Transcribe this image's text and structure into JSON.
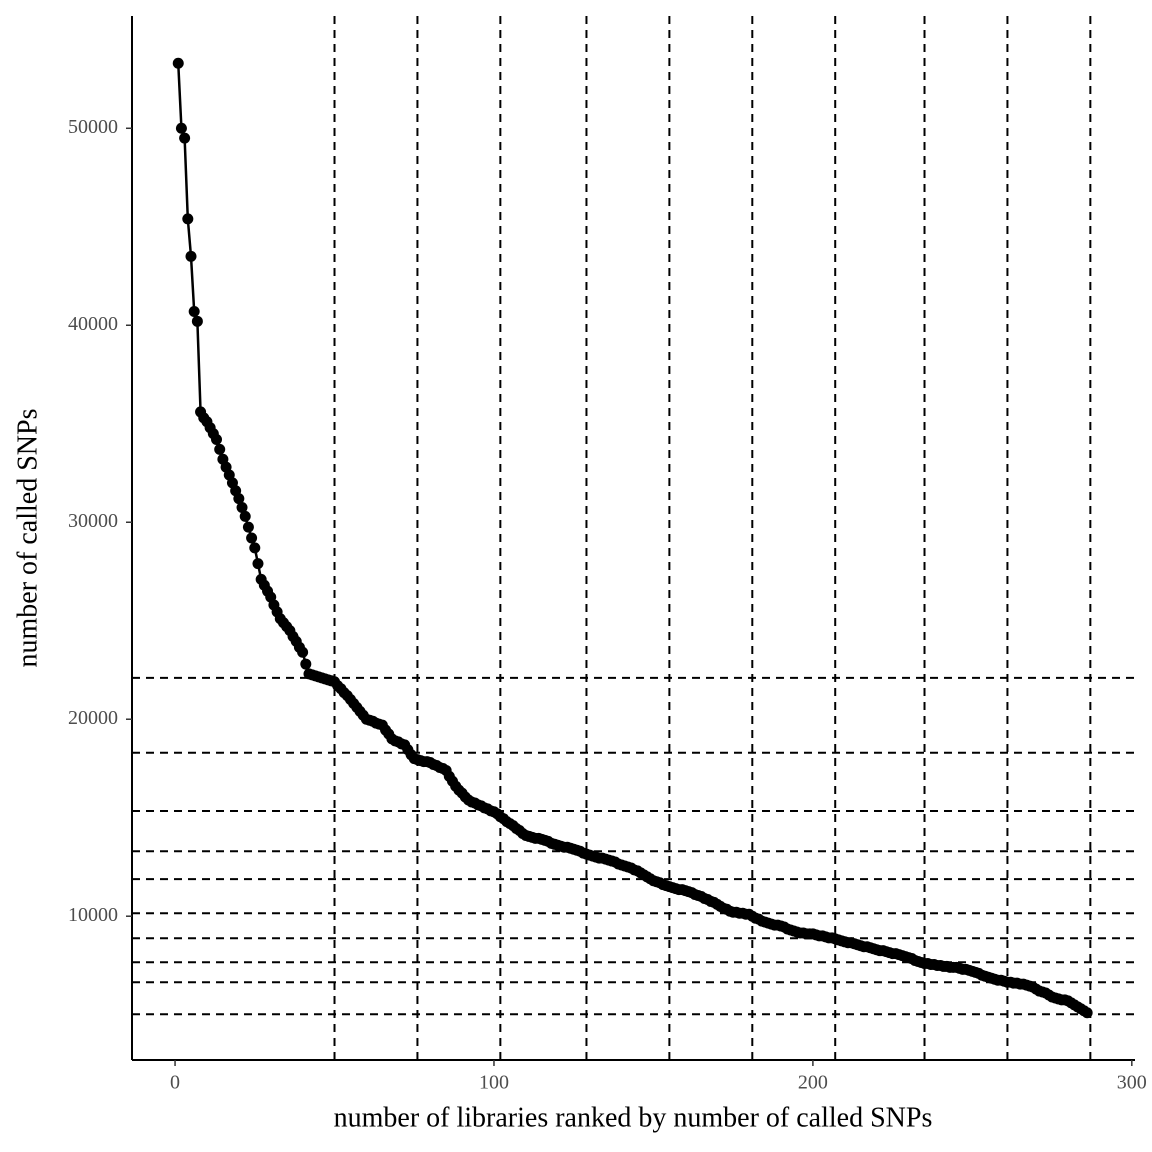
{
  "chart_data": {
    "type": "line",
    "x_label": "number of libraries ranked by number of called SNPs",
    "y_label": "number of called SNPs",
    "color": "#000000",
    "markers": true,
    "xlim": [
      -13.5,
      301
    ],
    "ylim": [
      2700,
      55700
    ],
    "xticks": [
      0,
      100,
      200,
      300
    ],
    "yticks": [
      10000,
      20000,
      30000,
      40000,
      50000
    ],
    "vlines": [
      50,
      76,
      102,
      129,
      155,
      181,
      207,
      235,
      261,
      287
    ],
    "hlines": [
      22100,
      18300,
      15340,
      13300,
      11880,
      10150,
      8880,
      7660,
      6650,
      5020
    ],
    "x": [
      1,
      2,
      3,
      4,
      5,
      6,
      7,
      8,
      9,
      10,
      11,
      12,
      13,
      14,
      15,
      16,
      17,
      18,
      19,
      20,
      21,
      22,
      23,
      24,
      25,
      26,
      27,
      28,
      29,
      30,
      31,
      32,
      33,
      34,
      35,
      36,
      37,
      38,
      39,
      40,
      41,
      42,
      43,
      44,
      45,
      46,
      47,
      48,
      49,
      50,
      51,
      52,
      53,
      54,
      55,
      56,
      57,
      58,
      59,
      60,
      61,
      62,
      63,
      64,
      65,
      66,
      67,
      68,
      69,
      70,
      71,
      72,
      73,
      74,
      75,
      76,
      77,
      78,
      79,
      80,
      81,
      82,
      83,
      84,
      85,
      86,
      87,
      88,
      89,
      90,
      91,
      92,
      93,
      94,
      95,
      96,
      97,
      98,
      99,
      100,
      101,
      102,
      103,
      104,
      105,
      106,
      107,
      108,
      109,
      110,
      111,
      112,
      113,
      114,
      115,
      116,
      117,
      118,
      119,
      120,
      121,
      122,
      123,
      124,
      125,
      126,
      127,
      128,
      129,
      130,
      131,
      132,
      133,
      134,
      135,
      136,
      137,
      138,
      139,
      140,
      141,
      142,
      143,
      144,
      145,
      146,
      147,
      148,
      149,
      150,
      151,
      152,
      153,
      154,
      155,
      156,
      157,
      158,
      159,
      160,
      161,
      162,
      163,
      164,
      165,
      166,
      167,
      168,
      169,
      170,
      171,
      172,
      173,
      174,
      175,
      176,
      177,
      178,
      179,
      180,
      181,
      182,
      183,
      184,
      185,
      186,
      187,
      188,
      189,
      190,
      191,
      192,
      193,
      194,
      195,
      196,
      197,
      198,
      199,
      200,
      201,
      202,
      203,
      204,
      205,
      206,
      207,
      208,
      209,
      210,
      211,
      212,
      213,
      214,
      215,
      216,
      217,
      218,
      219,
      220,
      221,
      222,
      223,
      224,
      225,
      226,
      227,
      228,
      229,
      230,
      231,
      232,
      233,
      234,
      235,
      236,
      237,
      238,
      239,
      240,
      241,
      242,
      243,
      244,
      245,
      246,
      247,
      248,
      249,
      250,
      251,
      252,
      253,
      254,
      255,
      256,
      257,
      258,
      259,
      260,
      261,
      262,
      263,
      264,
      265,
      266,
      267,
      268,
      269,
      270,
      271,
      272,
      273,
      274,
      275,
      276,
      277,
      278,
      279,
      280,
      281,
      282,
      283,
      284,
      285,
      286
    ],
    "values": [
      53300,
      50000,
      49500,
      45400,
      43500,
      40700,
      40200,
      35600,
      35300,
      35100,
      34800,
      34500,
      34200,
      33700,
      33200,
      32800,
      32400,
      32000,
      31600,
      31200,
      30750,
      30300,
      29750,
      29200,
      28700,
      27900,
      27100,
      26800,
      26500,
      26200,
      25800,
      25450,
      25100,
      24900,
      24700,
      24500,
      24200,
      23950,
      23650,
      23400,
      22800,
      22300,
      22250,
      22200,
      22150,
      22100,
      22050,
      22000,
      21950,
      21900,
      21700,
      21550,
      21350,
      21200,
      21000,
      20800,
      20600,
      20400,
      20200,
      20000,
      19950,
      19900,
      19800,
      19750,
      19700,
      19450,
      19250,
      19000,
      18900,
      18850,
      18750,
      18700,
      18450,
      18200,
      18000,
      17950,
      17900,
      17850,
      17850,
      17800,
      17700,
      17650,
      17550,
      17500,
      17400,
      17100,
      16850,
      16600,
      16400,
      16250,
      16050,
      15900,
      15800,
      15750,
      15650,
      15600,
      15500,
      15450,
      15350,
      15300,
      15200,
      15050,
      14950,
      14800,
      14700,
      14600,
      14450,
      14350,
      14200,
      14100,
      14050,
      14000,
      13950,
      13950,
      13900,
      13850,
      13800,
      13700,
      13650,
      13600,
      13550,
      13500,
      13500,
      13450,
      13400,
      13350,
      13300,
      13200,
      13150,
      13100,
      13050,
      13000,
      12950,
      12950,
      12900,
      12850,
      12800,
      12750,
      12650,
      12600,
      12550,
      12500,
      12450,
      12350,
      12300,
      12200,
      12100,
      12000,
      11900,
      11800,
      11750,
      11700,
      11600,
      11550,
      11500,
      11450,
      11400,
      11350,
      11350,
      11300,
      11250,
      11200,
      11100,
      11050,
      11000,
      10900,
      10850,
      10750,
      10700,
      10600,
      10500,
      10400,
      10350,
      10250,
      10200,
      10200,
      10150,
      10150,
      10100,
      10100,
      10000,
      9900,
      9850,
      9750,
      9700,
      9650,
      9600,
      9550,
      9550,
      9500,
      9450,
      9350,
      9300,
      9250,
      9200,
      9150,
      9150,
      9100,
      9100,
      9100,
      9050,
      9000,
      9000,
      8950,
      8900,
      8900,
      8850,
      8800,
      8750,
      8700,
      8650,
      8650,
      8600,
      8550,
      8500,
      8450,
      8450,
      8400,
      8350,
      8300,
      8250,
      8250,
      8200,
      8150,
      8100,
      8100,
      8050,
      8000,
      7950,
      7900,
      7850,
      7750,
      7700,
      7650,
      7600,
      7600,
      7550,
      7550,
      7500,
      7500,
      7450,
      7450,
      7400,
      7400,
      7400,
      7350,
      7300,
      7300,
      7250,
      7200,
      7150,
      7100,
      7000,
      6950,
      6900,
      6850,
      6800,
      6750,
      6750,
      6700,
      6650,
      6650,
      6600,
      6600,
      6550,
      6550,
      6500,
      6450,
      6400,
      6300,
      6200,
      6150,
      6100,
      6000,
      5900,
      5850,
      5800,
      5750,
      5750,
      5700,
      5600,
      5500,
      5400,
      5300,
      5200,
      5100
    ]
  }
}
